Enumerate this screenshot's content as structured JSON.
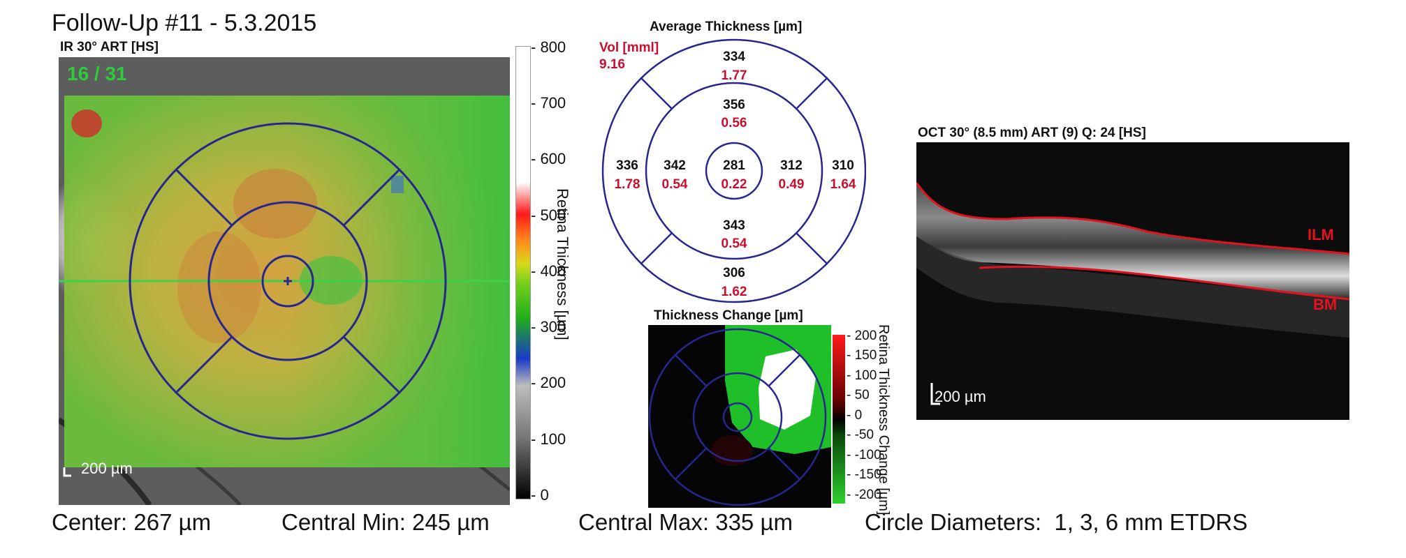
{
  "header": {
    "title": "Follow-Up #11 - 5.3.2015",
    "fundus_label": "IR 30° ART [HS]",
    "slice_counter": "16 / 31"
  },
  "fundus_map": {
    "scale_label": "200 µm",
    "colorbar": {
      "ticks": [
        "800",
        "700",
        "600",
        "500",
        "400",
        "300",
        "200",
        "100",
        "0"
      ],
      "axis_label": "Retina Thickness [µm]"
    }
  },
  "average_thickness": {
    "title": "Average Thickness [µm]",
    "vol_label": "Vol [mml]",
    "vol_value": "9.16",
    "sectors": {
      "outer_top": {
        "thickness": "334",
        "volume": "1.77"
      },
      "inner_top": {
        "thickness": "356",
        "volume": "0.56"
      },
      "outer_left": {
        "thickness": "336",
        "volume": "1.78"
      },
      "inner_left": {
        "thickness": "342",
        "volume": "0.54"
      },
      "center": {
        "thickness": "281",
        "volume": "0.22"
      },
      "inner_right": {
        "thickness": "312",
        "volume": "0.49"
      },
      "outer_right": {
        "thickness": "310",
        "volume": "1.64"
      },
      "inner_bottom": {
        "thickness": "343",
        "volume": "0.54"
      },
      "outer_bottom": {
        "thickness": "306",
        "volume": "1.62"
      }
    }
  },
  "thickness_change": {
    "title": "Thickness Change [µm]",
    "colorbar": {
      "ticks": [
        "200",
        "150",
        "100",
        "50",
        "0",
        "-50",
        "-100",
        "-150",
        "-200"
      ],
      "axis_label": "Retina Thickness Change [µm]"
    }
  },
  "oct_scan": {
    "label": "OCT 30° (8.5 mm) ART (9) Q: 24 [HS]",
    "ilm_label": "ILM",
    "bm_label": "BM",
    "scale_label": "200 µm"
  },
  "footer": {
    "center": "Center: 267 µm",
    "central_min": "Central Min: 245 µm",
    "central_max": "Central Max: 335 µm",
    "circle_diameters": "Circle Diameters:  1, 3, 6 mm ETDRS"
  },
  "colors": {
    "etdrs_grid": "#27268f",
    "volume_red": "#c8102e",
    "counter_green": "#2ccc3a",
    "thickness_green": "#3bbf3f"
  }
}
